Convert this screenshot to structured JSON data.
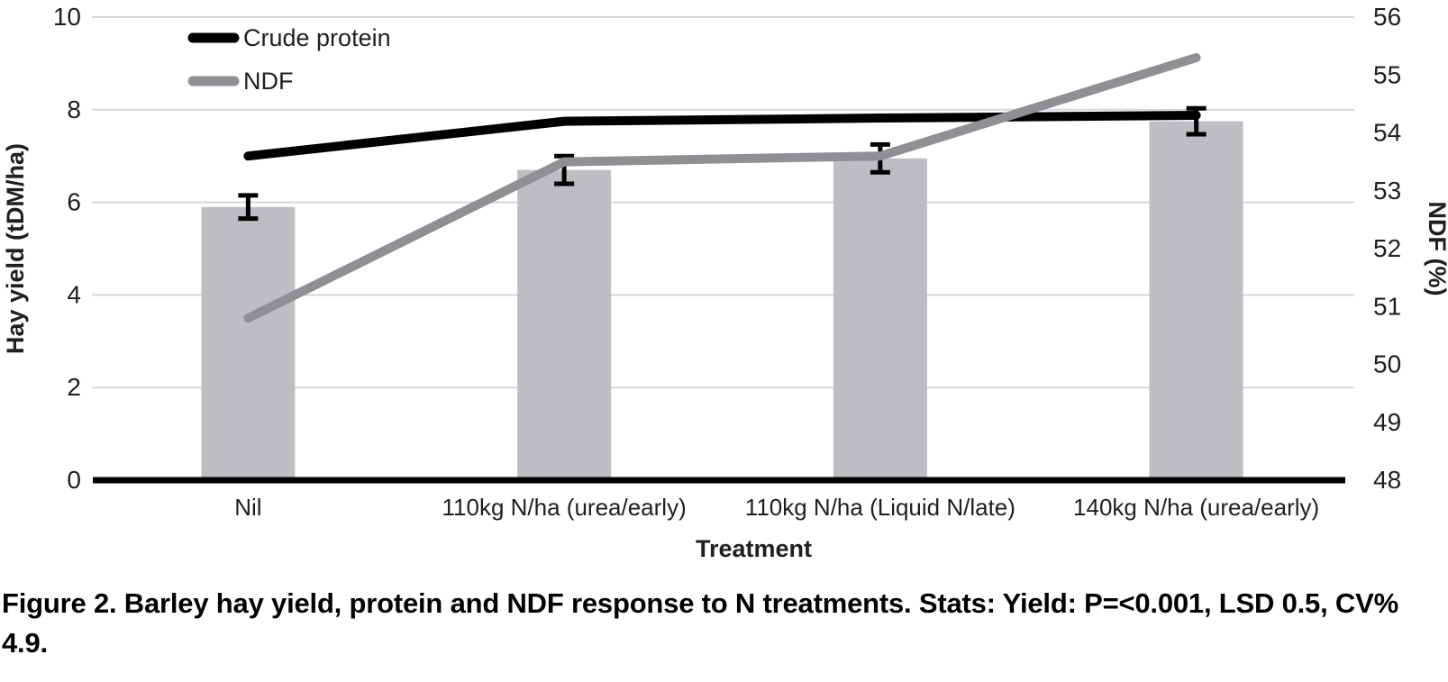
{
  "figure": {
    "caption": "Figure 2. Barley hay yield, protein and NDF response to N treatments. Stats: Yield: P=<0.001, LSD 0.5, CV% 4.9."
  },
  "chart_data": {
    "type": "bar",
    "subtype": "combo-bar-line-dual-axis",
    "categories": [
      "Nil",
      "110kg N/ha (urea/early)",
      "110kg N/ha (Liquid N/late)",
      "140kg N/ha (urea/early)"
    ],
    "series": [
      {
        "name": "Hay yield",
        "render": "bar",
        "axis": "left",
        "values": [
          5.9,
          6.7,
          6.95,
          7.75
        ],
        "error_bars": [
          0.25,
          0.3,
          0.3,
          0.28
        ],
        "color": "#bcbec2",
        "in_legend": false
      },
      {
        "name": "Crude protein",
        "render": "line",
        "axis": "left",
        "values": [
          7.0,
          7.75,
          7.82,
          7.88
        ],
        "color": "#000000",
        "in_legend": true
      },
      {
        "name": "NDF",
        "render": "line",
        "axis": "right",
        "values": [
          50.8,
          53.5,
          53.6,
          55.3
        ],
        "color": "#8e9093",
        "in_legend": true
      }
    ],
    "left_axis": {
      "label": "Hay yield (tDM/ha)",
      "min": 0,
      "max": 10,
      "ticks": [
        0,
        2,
        4,
        6,
        8,
        10
      ]
    },
    "right_axis": {
      "label": "NDF (%)",
      "min": 48,
      "max": 56,
      "ticks": [
        48,
        49,
        50,
        51,
        52,
        53,
        54,
        55,
        56
      ]
    },
    "x_axis": {
      "label": "Treatment"
    },
    "grid": {
      "show": true,
      "color": "#d6d7d9"
    },
    "legend": {
      "position": "top-left",
      "entries": [
        "Crude protein",
        "NDF"
      ]
    },
    "styles": {
      "text_color": "#1f1f1f",
      "axis_line_color": "#000000",
      "error_bar_color": "#000000"
    }
  }
}
